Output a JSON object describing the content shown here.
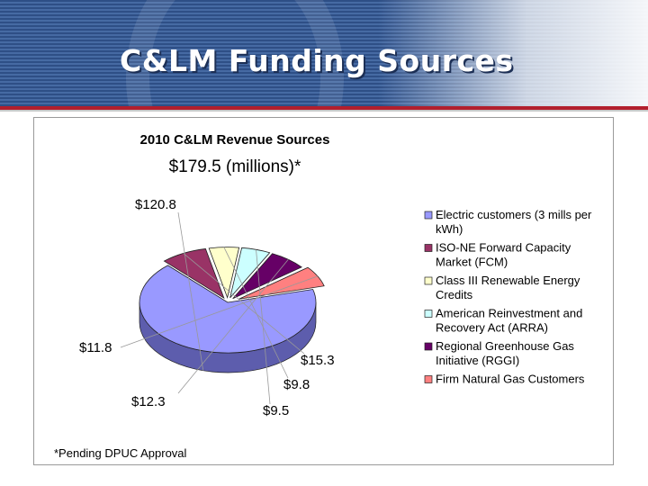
{
  "slide": {
    "title": "C&LM Funding Sources"
  },
  "colors": {
    "banner": "#2e4f86",
    "accent_rule": "#b21f2d"
  },
  "chart_data": {
    "type": "pie",
    "style": "3d-exploded",
    "title": "2010 C&LM Revenue Sources",
    "subtitle": "$179.5 (millions)*",
    "legend_position": "right",
    "slices": [
      {
        "name": "Electric customers (3 mills per kWh)",
        "label": "$120.8",
        "value": 120.8,
        "color": "#9999ff",
        "side": "#5d5dad"
      },
      {
        "name": "ISO-NE Forward Capacity Market (FCM)",
        "label": "$15.3",
        "value": 15.3,
        "color": "#993366",
        "side": "#5e1f3f"
      },
      {
        "name": "Class III Renewable Energy Credits",
        "label": "$9.8",
        "value": 9.8,
        "color": "#ffffcc",
        "side": "#9b9b7b"
      },
      {
        "name": "American Reinvestment and Recovery Act (ARRA)",
        "label": "$9.5",
        "value": 9.5,
        "color": "#ccffff",
        "side": "#6f9797"
      },
      {
        "name": "Regional Greenhouse Gas Initiative (RGGI)",
        "label": "$12.3",
        "value": 12.3,
        "color": "#660066",
        "side": "#3a003a"
      },
      {
        "name": "Firm Natural Gas Customers",
        "label": "$11.8",
        "value": 11.8,
        "color": "#ff8080",
        "side": "#a34f4f"
      }
    ],
    "footnote": "*Pending DPUC Approval"
  }
}
